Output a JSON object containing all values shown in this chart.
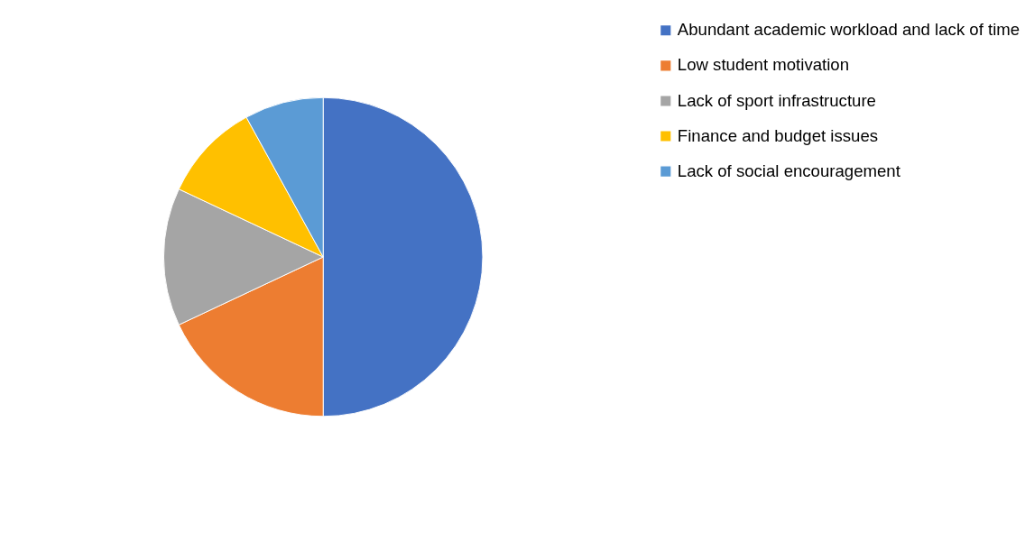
{
  "chart_data": {
    "type": "pie",
    "categories": [
      "Abundant academic workload and lack of time",
      "Low student motivation",
      "Lack of sport infrastructure",
      "Finance and budget issues",
      "Lack of social encouragement"
    ],
    "values": [
      50,
      18,
      14,
      10,
      8
    ],
    "colors": [
      "#4472c4",
      "#ed7d31",
      "#a5a5a5",
      "#ffc000",
      "#5b9bd5"
    ],
    "legend": "right"
  }
}
